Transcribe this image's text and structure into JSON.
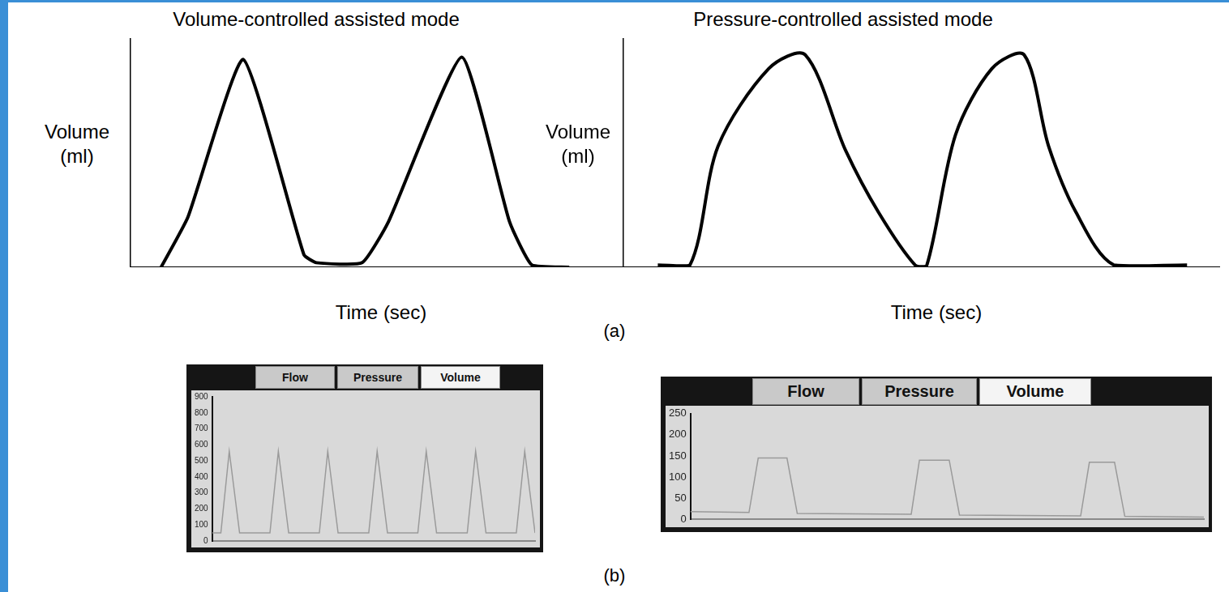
{
  "panel_labels": [
    "(a)",
    "(b)"
  ],
  "chart_data": [
    {
      "type": "line",
      "title": "Volume-controlled assisted mode",
      "x_label": "Time (sec)",
      "y_label": "Volume (ml)",
      "x": [
        6.3,
        11.7,
        22.8,
        35,
        37.5,
        46.7,
        52,
        66.7,
        76.3,
        80.8,
        88.3
      ],
      "values": [
        0,
        22,
        91,
        5.5,
        2,
        2,
        20,
        92,
        20,
        1,
        0
      ],
      "color": "#000000",
      "xlim": [
        0,
        100
      ],
      "ylim": [
        0,
        100
      ],
      "tick_labels": false,
      "grid": false
    },
    {
      "type": "line",
      "title": "Pressure-controlled assisted mode",
      "x_label": "Time (sec)",
      "y_label": "Volume (ml)",
      "x": [
        5.9,
        11.3,
        16,
        24.5,
        30.6,
        37.4,
        42.9,
        49,
        51,
        55.8,
        61.9,
        67.3,
        71.4,
        76,
        82.3,
        94.6
      ],
      "values": [
        1,
        1,
        53,
        87,
        93,
        51,
        24,
        1,
        1,
        58,
        87,
        93,
        53,
        24,
        1,
        1
      ],
      "color": "#000000",
      "xlim": [
        0,
        100
      ],
      "ylim": [
        0,
        100
      ],
      "tick_labels": false,
      "grid": false
    },
    {
      "type": "line",
      "tabs": [
        "Flow",
        "Pressure",
        "Volume"
      ],
      "active_tab": "Volume",
      "x": [
        0,
        2.7,
        5.3,
        8.5,
        17.9,
        20.5,
        23.7,
        33.2,
        35.8,
        39.0,
        48.5,
        51.1,
        54.3,
        63.7,
        66.3,
        69.5,
        79.0,
        81.6,
        84.8,
        94.2,
        96.8,
        100
      ],
      "values": [
        50,
        50,
        560,
        50,
        50,
        560,
        50,
        50,
        560,
        50,
        50,
        560,
        50,
        50,
        560,
        50,
        50,
        560,
        50,
        50,
        560,
        50
      ],
      "color": "#9a9a9a",
      "xlim": [
        0,
        100
      ],
      "ylim": [
        0,
        900
      ],
      "yticks": [
        0,
        100,
        200,
        300,
        400,
        500,
        600,
        700,
        800,
        900
      ],
      "tick_labels": "y",
      "grid": false
    },
    {
      "type": "line",
      "tabs": [
        "Flow",
        "Pressure",
        "Volume"
      ],
      "active_tab": "Volume",
      "x": [
        0,
        11.4,
        13.2,
        18.8,
        20.8,
        43.0,
        44.6,
        50.4,
        52.4,
        76.0,
        77.7,
        82.6,
        84.6,
        100
      ],
      "values": [
        18,
        16,
        145,
        145,
        14,
        12,
        140,
        140,
        10,
        8,
        135,
        135,
        7,
        5
      ],
      "color": "#9a9a9a",
      "xlim": [
        0,
        100
      ],
      "ylim": [
        0,
        250
      ],
      "yticks": [
        0,
        50,
        100,
        150,
        200,
        250
      ],
      "tick_labels": "y",
      "grid": false
    }
  ]
}
